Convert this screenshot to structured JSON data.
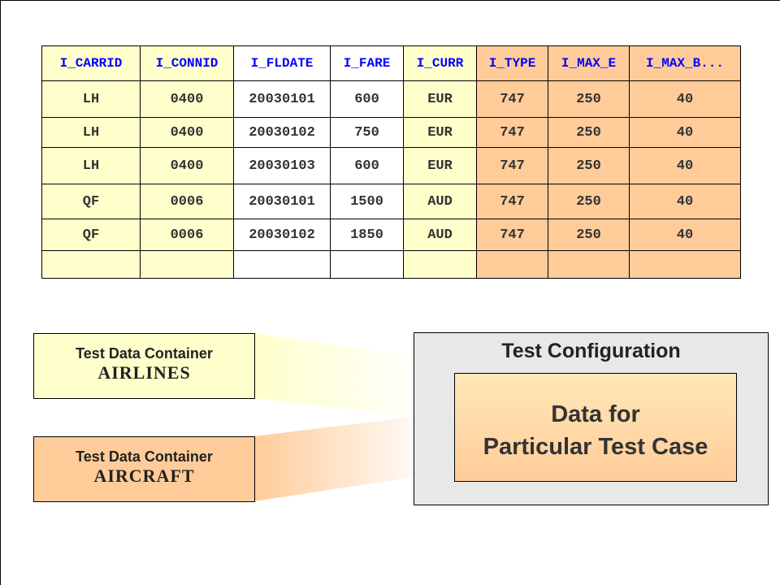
{
  "table": {
    "columns": [
      "I_CARRID",
      "I_CONNID",
      "I_FLDATE",
      "I_FARE",
      "I_CURR",
      "I_TYPE",
      "I_MAX_E",
      "I_MAX_B..."
    ],
    "rows": [
      [
        "LH",
        "0400",
        "20030101",
        "600",
        "EUR",
        "747",
        "250",
        "40"
      ],
      [
        "LH",
        "0400",
        "20030102",
        "750",
        "EUR",
        "747",
        "250",
        "40"
      ],
      [
        "LH",
        "0400",
        "20030103",
        "600",
        "EUR",
        "747",
        "250",
        "40"
      ],
      [
        "QF",
        "0006",
        "20030101",
        "1500",
        "AUD",
        "747",
        "250",
        "40"
      ],
      [
        "QF",
        "0006",
        "20030102",
        "1850",
        "AUD",
        "747",
        "250",
        "40"
      ],
      [
        "",
        "",
        "",
        "",
        "",
        "",
        "",
        ""
      ]
    ]
  },
  "containers": [
    {
      "label": "Test Data Container",
      "name": "AIRLINES",
      "color": "#ffffcc"
    },
    {
      "label": "Test Data Container",
      "name": "AIRCRAFT",
      "color": "#ffcc99"
    }
  ],
  "config": {
    "title": "Test Configuration",
    "inner_line1": "Data for",
    "inner_line2": "Particular Test Case"
  }
}
